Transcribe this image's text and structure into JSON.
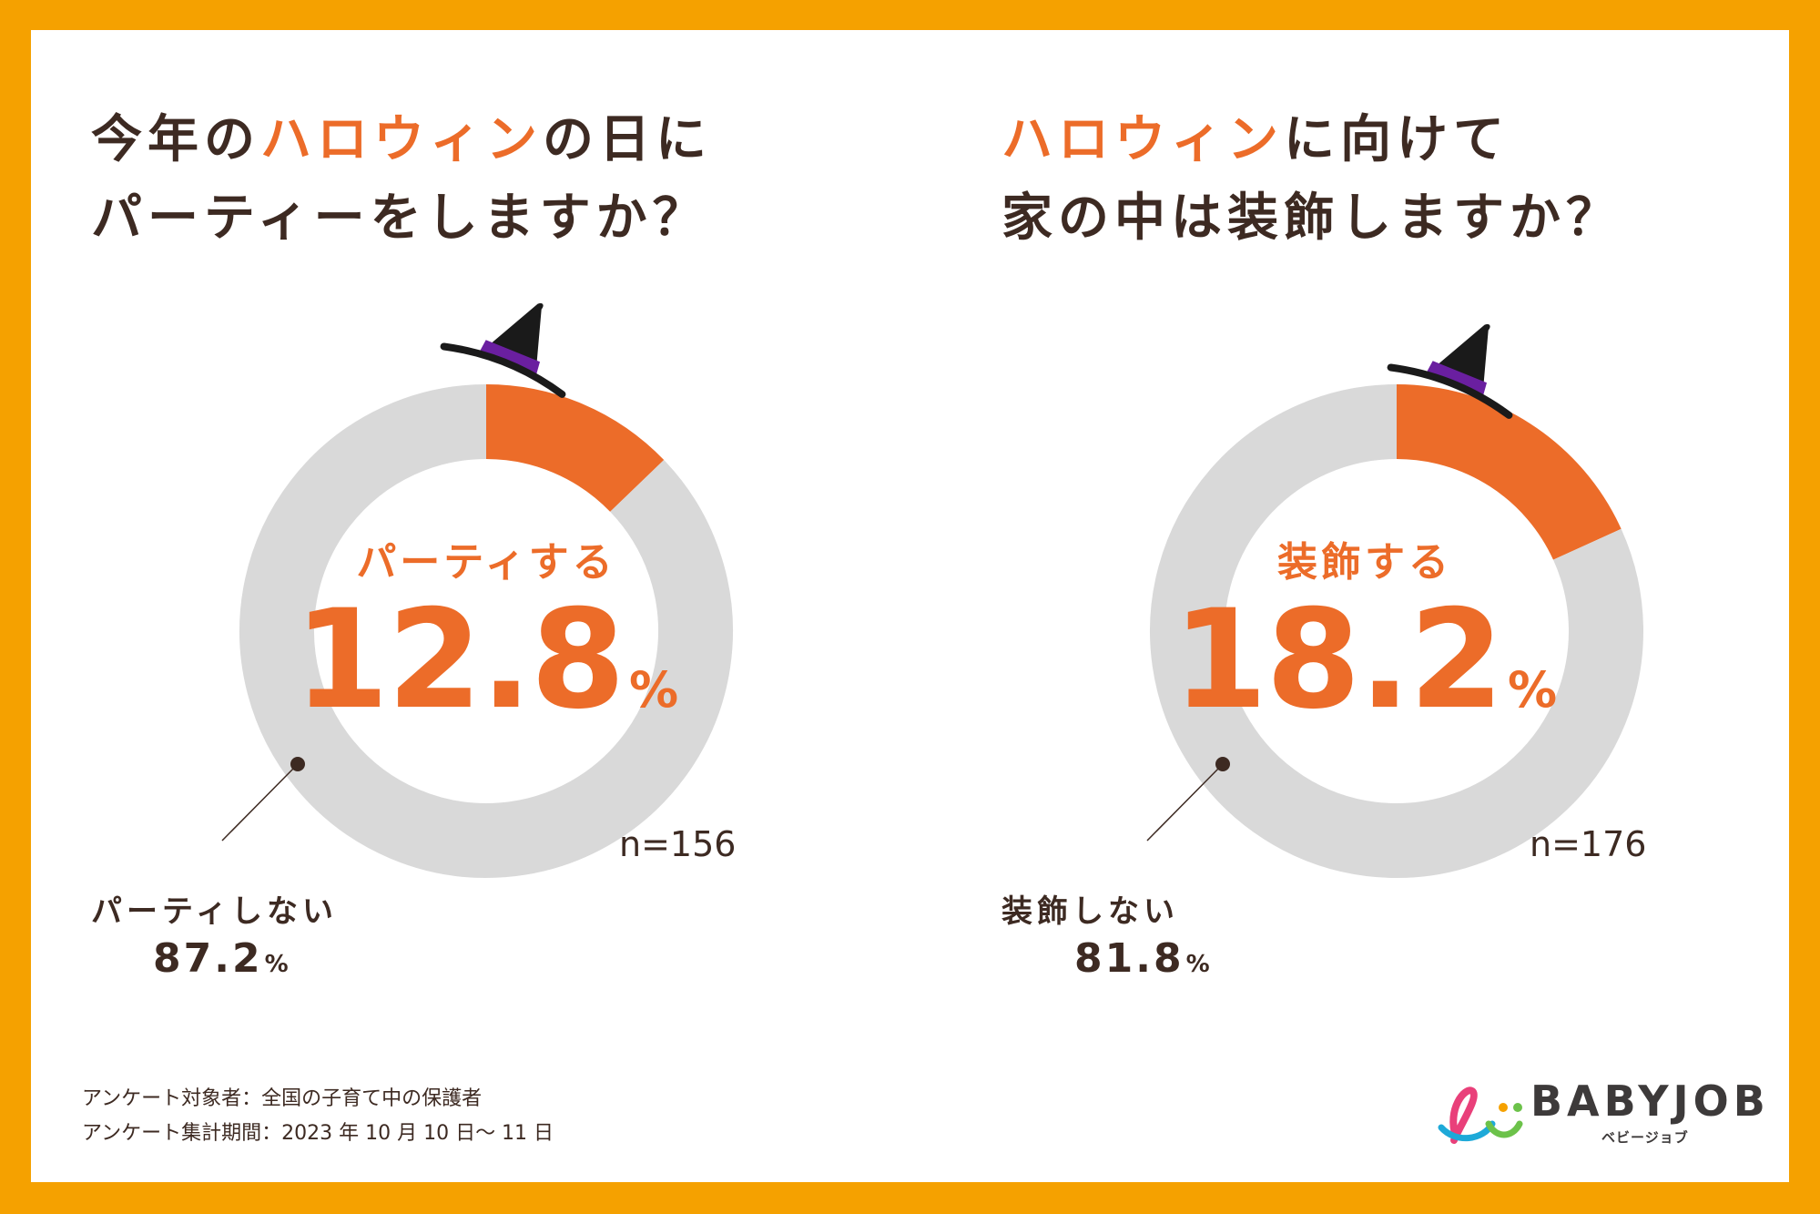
{
  "chart_data": [
    {
      "type": "pie",
      "title_parts": [
        {
          "text": "今年の",
          "accent": false
        },
        {
          "text": "ハロウィン",
          "accent": true
        },
        {
          "text": "の日に",
          "accent": false
        }
      ],
      "title_line2": "パーティーをしますか？",
      "slices": [
        {
          "label": "パーティする",
          "value": 12.8,
          "color": "#ec6c29"
        },
        {
          "label": "パーティしない",
          "value": 87.2,
          "color": "#d9d9d9"
        }
      ],
      "highlight": {
        "label": "パーティする",
        "value": "12.8",
        "unit": "%"
      },
      "other": {
        "label": "パーティしない",
        "value": "87.2",
        "unit": "%"
      },
      "n": "n=156"
    },
    {
      "type": "pie",
      "title_parts": [
        {
          "text": "ハロウィン",
          "accent": true
        },
        {
          "text": "に向けて",
          "accent": false
        }
      ],
      "title_line2": "家の中は装飾しますか？",
      "slices": [
        {
          "label": "装飾する",
          "value": 18.2,
          "color": "#ec6c29"
        },
        {
          "label": "装飾しない",
          "value": 81.8,
          "color": "#d9d9d9"
        }
      ],
      "highlight": {
        "label": "装飾する",
        "value": "18.2",
        "unit": "%"
      },
      "other": {
        "label": "装飾しない",
        "value": "81.8",
        "unit": "%"
      },
      "n": "n=176"
    }
  ],
  "footer": {
    "line1": "アンケート対象者：全国の子育て中の保護者",
    "line2": "アンケート集計期間：2023 年 10 月 10 日～ 11 日"
  },
  "logo": {
    "name": "BABYJOB",
    "sub": "ベビージョブ"
  },
  "colors": {
    "accent": "#ec6c29",
    "ring": "#d9d9d9",
    "text": "#3d2a22",
    "frame": "#f5a100",
    "hat": "#6a1fa0"
  },
  "icons": [
    "witch-hat-icon",
    "babyjob-logo-icon"
  ]
}
